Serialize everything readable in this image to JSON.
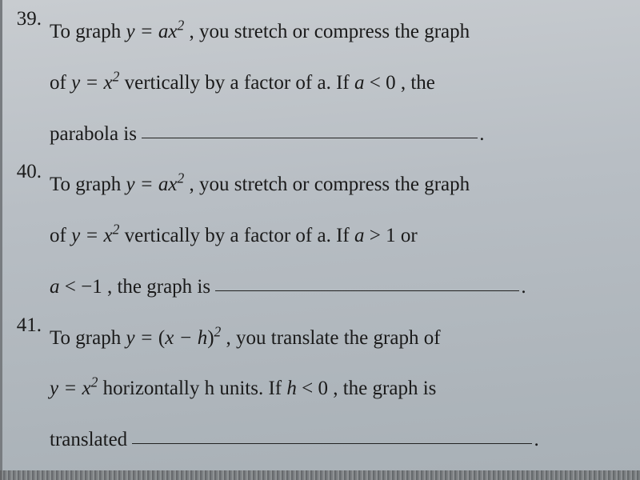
{
  "page": {
    "background_gradient": [
      "#c8ccd0",
      "#b8bec4",
      "#a8b0b6"
    ],
    "text_color": "#1a1a1a",
    "font_family": "Georgia, Times New Roman, serif",
    "body_fontsize": 25,
    "line_height": 2.55,
    "underline_color": "#222222"
  },
  "questions": [
    {
      "number": "39.",
      "parts": [
        {
          "t": "To graph "
        },
        {
          "t": "y = ax",
          "math": true
        },
        {
          "t": "2",
          "sup": true,
          "math": true
        },
        {
          "t": " , you stretch or compress the graph "
        },
        {
          "br": true
        },
        {
          "t": "of "
        },
        {
          "t": "y = x",
          "math": true
        },
        {
          "t": "2",
          "sup": true,
          "math": true
        },
        {
          "t": "  vertically by a factor of a.  If "
        },
        {
          "t": "a",
          "math": true
        },
        {
          "t": " < 0 , the"
        },
        {
          "br": true
        },
        {
          "t": "parabola is "
        },
        {
          "blank": "long"
        },
        {
          "t": ".",
          "period": true
        }
      ]
    },
    {
      "number": "40.",
      "parts": [
        {
          "t": "To graph "
        },
        {
          "t": "y = ax",
          "math": true
        },
        {
          "t": "2",
          "sup": true,
          "math": true
        },
        {
          "t": " , you stretch or compress the graph "
        },
        {
          "br": true
        },
        {
          "t": "of "
        },
        {
          "t": "y = x",
          "math": true
        },
        {
          "t": "2",
          "sup": true,
          "math": true
        },
        {
          "t": "  vertically by a factor of a.  If "
        },
        {
          "t": "a",
          "math": true
        },
        {
          "t": " > 1  or"
        },
        {
          "br": true
        },
        {
          "t": "a",
          "math": true
        },
        {
          "t": " < −1 , the graph is "
        },
        {
          "blank": "med"
        },
        {
          "t": ".",
          "period": true
        }
      ]
    },
    {
      "number": "41.",
      "parts": [
        {
          "t": "To graph  "
        },
        {
          "t": "y = ",
          "math": true
        },
        {
          "t": "(",
          "math": false
        },
        {
          "t": "x − h",
          "math": true
        },
        {
          "t": ")",
          "math": false
        },
        {
          "t": "2",
          "sup": true,
          "math": true
        },
        {
          "t": " , you translate the graph of"
        },
        {
          "br": true
        },
        {
          "t": "y = x",
          "math": true
        },
        {
          "t": "2",
          "sup": true,
          "math": true
        },
        {
          "t": "  horizontally h units.  If "
        },
        {
          "t": "h",
          "math": true
        },
        {
          "t": " < 0 , the graph is"
        },
        {
          "br": true
        },
        {
          "t": "translated "
        },
        {
          "blank": "wide"
        },
        {
          "t": ".",
          "period": true
        }
      ]
    }
  ]
}
